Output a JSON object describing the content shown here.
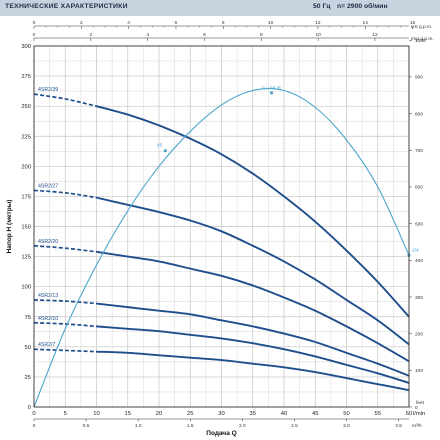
{
  "header": {
    "title": "ТЕХНИЧЕСКИЕ ХАРАКТЕРИСТИКИ",
    "frequency": "50 Гц",
    "speed": "n= 2900 об/мин",
    "background": "#c7d3df"
  },
  "chart_data": {
    "type": "line",
    "title": "",
    "xlabel": "Подача Q",
    "ylabel": "Напор H (метры)",
    "grid": true,
    "xlim": [
      0,
      60
    ],
    "ylim": [
      0,
      300
    ],
    "x_ticks": [
      0,
      5,
      10,
      15,
      20,
      25,
      30,
      35,
      40,
      45,
      50,
      55,
      60
    ],
    "y_ticks": [
      0,
      25,
      50,
      75,
      100,
      125,
      150,
      175,
      200,
      225,
      250,
      275,
      300
    ],
    "x_unit": "l/min",
    "bottom_unit": "m³/h",
    "bottom_ticks": [
      "0",
      "0.5",
      "1.0",
      "1.5",
      "2.0",
      "2.5",
      "3.0",
      "3.5"
    ],
    "top_scales": [
      {
        "unit": "US g.p.m.",
        "ticks": [
          "0",
          "2",
          "4",
          "6",
          "8",
          "10",
          "12",
          "14",
          "16"
        ]
      },
      {
        "unit": "Imp g.p.m.",
        "ticks": [
          "0",
          "2",
          "4",
          "6",
          "8",
          "10",
          "12"
        ]
      }
    ],
    "right_unit": "feet",
    "right_ticks": [
      0,
      100,
      200,
      300,
      400,
      500,
      600,
      700,
      800,
      900,
      1000
    ],
    "colors": {
      "curve": "#1f4e8c",
      "efficiency": "#4aa6cc",
      "grid": "#c5c5c5",
      "axis": "#333333"
    },
    "series": [
      {
        "name": "4SR2/39",
        "x": [
          0,
          5,
          10,
          15,
          20,
          25,
          30,
          35,
          40,
          45,
          50,
          55,
          60
        ],
        "values": [
          260,
          256,
          250,
          243,
          234,
          223,
          210,
          194,
          175,
          154,
          130,
          104,
          75
        ]
      },
      {
        "name": "4SR2/27",
        "x": [
          0,
          5,
          10,
          15,
          20,
          25,
          30,
          35,
          40,
          45,
          50,
          55,
          60
        ],
        "values": [
          180,
          178,
          174,
          168,
          162,
          155,
          146,
          134,
          121,
          106,
          89,
          72,
          52
        ]
      },
      {
        "name": "4SR2/20",
        "x": [
          0,
          5,
          10,
          15,
          20,
          25,
          30,
          35,
          40,
          45,
          50,
          55,
          60
        ],
        "values": [
          134,
          132,
          129,
          125,
          121,
          115,
          109,
          101,
          91,
          80,
          67,
          53,
          38
        ]
      },
      {
        "name": "4SR2/13",
        "x": [
          0,
          5,
          10,
          15,
          20,
          25,
          30,
          35,
          40,
          45,
          50,
          55,
          60
        ],
        "values": [
          89,
          88,
          86,
          83,
          80,
          77,
          72,
          67,
          61,
          54,
          45,
          36,
          26
        ]
      },
      {
        "name": "4SR2/10",
        "x": [
          0,
          5,
          10,
          15,
          20,
          25,
          30,
          35,
          40,
          45,
          50,
          55,
          60
        ],
        "values": [
          70,
          69,
          67,
          65,
          63,
          60,
          57,
          53,
          48,
          42,
          35,
          28,
          20
        ]
      },
      {
        "name": "4SR2/7",
        "x": [
          0,
          5,
          10,
          15,
          20,
          25,
          30,
          35,
          40,
          45,
          50,
          55,
          60
        ],
        "values": [
          48,
          47,
          46,
          45,
          43,
          41,
          39,
          36,
          33,
          29,
          24,
          19,
          14
        ]
      }
    ],
    "dashed_until_x": 10,
    "efficiency_curve": {
      "name": "η",
      "x": [
        0,
        5,
        10,
        15,
        20,
        25,
        30,
        35,
        40,
        45,
        50,
        55,
        60
      ],
      "values": [
        0,
        65,
        118,
        163,
        200,
        229,
        251,
        263,
        263,
        249,
        222,
        183,
        126
      ],
      "markers": [
        {
          "x": 21,
          "y": 213,
          "label": "45"
        },
        {
          "x": 38,
          "y": 261,
          "label": "η = 54 %"
        },
        {
          "x": 60,
          "y": 126,
          "label": "2/4"
        }
      ]
    }
  }
}
